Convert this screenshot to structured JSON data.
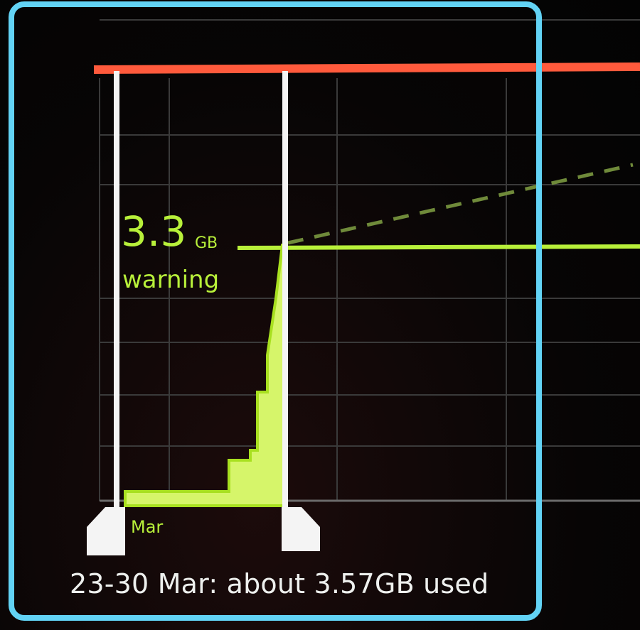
{
  "data_usage": {
    "warning_value": "3.3",
    "warning_unit": "GB",
    "warning_label": "warning",
    "month_label": "Mar",
    "summary": "23-30 Mar: about 3.57GB used"
  },
  "colors": {
    "limit_line": "#ff5a3c",
    "warning_line": "#b8f03a",
    "usage_fill": "#d6f56a",
    "handle": "#f4f4f4",
    "highlight_border": "#62d3f5"
  },
  "icons": {
    "left_handle": "range-start-handle-icon",
    "right_handle": "range-end-handle-icon"
  }
}
